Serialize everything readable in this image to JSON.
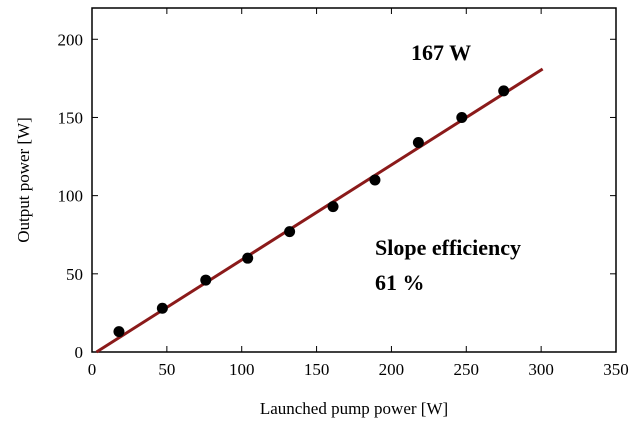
{
  "chart_data": {
    "type": "scatter",
    "xlabel": "Launched pump power [W]",
    "ylabel": "Output power [W]",
    "xlim": [
      0,
      350
    ],
    "ylim": [
      0,
      220
    ],
    "xticks": [
      0,
      50,
      100,
      150,
      200,
      250,
      300,
      350
    ],
    "yticks": [
      0,
      50,
      100,
      150,
      200
    ],
    "grid": false,
    "series": [
      {
        "type": "scatter",
        "color": "#000000",
        "x": [
          18,
          47,
          76,
          104,
          132,
          161,
          189,
          218,
          247,
          275
        ],
        "y": [
          13,
          28,
          46,
          60,
          77,
          93,
          110,
          134,
          150,
          167
        ]
      },
      {
        "type": "line",
        "color": "#8b1a1a",
        "x": [
          3,
          301
        ],
        "y": [
          0,
          181
        ]
      }
    ],
    "annotations": [
      {
        "text": "167 W"
      },
      {
        "text": "Slope efficiency"
      },
      {
        "text": "61 %"
      }
    ]
  }
}
